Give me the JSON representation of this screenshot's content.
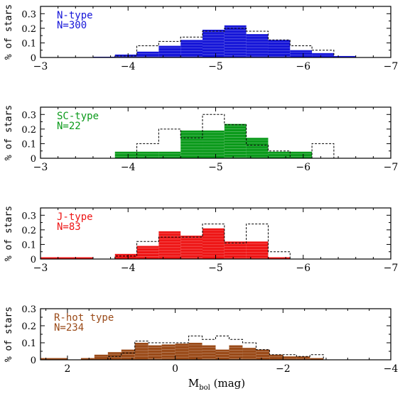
{
  "figure": {
    "xlabel_main": "M",
    "xlabel_sub": "bol",
    "xlabel_unit": " (mag)"
  },
  "chart_data": [
    {
      "type": "histogram",
      "panel": "N",
      "label": "N-type",
      "count_label": "N=300",
      "color": "#1515d8",
      "ylabel": "% of stars",
      "xlim": [
        -3,
        -7
      ],
      "ylim": [
        0,
        0.35
      ],
      "xticks": [
        "−3",
        "−4",
        "−5",
        "−6",
        "−7"
      ],
      "xtick_values": [
        -3,
        -4,
        -5,
        -6,
        -7
      ],
      "yticks": [
        "0",
        "0.1",
        "0.2",
        "0.3"
      ],
      "ytick_values": [
        0,
        0.1,
        0.2,
        0.3
      ],
      "bin_edges": [
        -3.6,
        -3.85,
        -4.1,
        -4.35,
        -4.6,
        -4.85,
        -5.1,
        -5.35,
        -5.6,
        -5.85,
        -6.1,
        -6.35,
        -6.6
      ],
      "filled": [
        0.005,
        0.02,
        0.04,
        0.08,
        0.12,
        0.19,
        0.22,
        0.16,
        0.12,
        0.05,
        0.03,
        0.01
      ],
      "dashed": [
        0.0,
        0.01,
        0.08,
        0.11,
        0.14,
        0.18,
        0.2,
        0.18,
        0.12,
        0.08,
        0.05,
        0.0
      ]
    },
    {
      "type": "histogram",
      "panel": "SC",
      "label": "SC-type",
      "count_label": "N=22",
      "color": "#0a9a1a",
      "ylabel": "% of stars",
      "xlim": [
        -3,
        -7
      ],
      "ylim": [
        0,
        0.35
      ],
      "xticks": [
        "−3",
        "−4",
        "−5",
        "−6",
        "−7"
      ],
      "xtick_values": [
        -3,
        -4,
        -5,
        -6,
        -7
      ],
      "yticks": [
        "0",
        "0.1",
        "0.2",
        "0.3"
      ],
      "ytick_values": [
        0,
        0.1,
        0.2,
        0.3
      ],
      "bin_edges": [
        -3.85,
        -4.1,
        -4.35,
        -4.6,
        -4.85,
        -5.1,
        -5.35,
        -5.6,
        -5.85,
        -6.1,
        -6.35
      ],
      "filled": [
        0.045,
        0.045,
        0.045,
        0.19,
        0.19,
        0.235,
        0.14,
        0.045,
        0.045,
        0.0
      ],
      "dashed": [
        0.0,
        0.1,
        0.2,
        0.14,
        0.3,
        0.23,
        0.09,
        0.05,
        0.0,
        0.1
      ]
    },
    {
      "type": "histogram",
      "panel": "J",
      "label": "J-type",
      "count_label": "N=83",
      "color": "#ee1515",
      "ylabel": "% of stars",
      "xlim": [
        -3,
        -7
      ],
      "ylim": [
        0,
        0.35
      ],
      "xticks": [
        "−3",
        "−4",
        "−5",
        "−6",
        "−7"
      ],
      "xtick_values": [
        -3,
        -4,
        -5,
        -6,
        -7
      ],
      "yticks": [
        "0",
        "0.1",
        "0.2",
        "0.3"
      ],
      "ytick_values": [
        0,
        0.1,
        0.2,
        0.3
      ],
      "bin_edges": [
        -3.0,
        -3.6,
        -3.85,
        -4.1,
        -4.35,
        -4.6,
        -4.85,
        -5.1,
        -5.35,
        -5.6,
        -5.85
      ],
      "filled": [
        0.012,
        0.0,
        0.035,
        0.09,
        0.19,
        0.16,
        0.21,
        0.12,
        0.12,
        0.012
      ],
      "dashed": [
        0.0,
        0.0,
        0.02,
        0.12,
        0.15,
        0.15,
        0.24,
        0.11,
        0.24,
        0.05
      ]
    },
    {
      "type": "histogram",
      "panel": "R-hot",
      "label": "R-hot type",
      "count_label": "N=234",
      "color": "#9a4a18",
      "ylabel": "% of stars",
      "xlim": [
        2.5,
        -4
      ],
      "ylim": [
        0,
        0.3
      ],
      "xticks": [
        "2",
        "0",
        "−2",
        "−4"
      ],
      "xtick_values": [
        2,
        0,
        -2,
        -4
      ],
      "yticks": [
        "0",
        "0.1",
        "0.2",
        "0.3"
      ],
      "ytick_values": [
        0,
        0.1,
        0.2,
        0.3
      ],
      "bin_edges": [
        2.5,
        2.0,
        1.75,
        1.5,
        1.25,
        1.0,
        0.75,
        0.5,
        0.25,
        0.0,
        -0.25,
        -0.5,
        -0.75,
        -1.0,
        -1.25,
        -1.5,
        -1.75,
        -2.0,
        -2.25,
        -2.5,
        -2.75,
        -3.0
      ],
      "filled": [
        0.01,
        0.0,
        0.01,
        0.03,
        0.045,
        0.06,
        0.1,
        0.085,
        0.09,
        0.095,
        0.1,
        0.085,
        0.06,
        0.085,
        0.07,
        0.06,
        0.03,
        0.02,
        0.02,
        0.01,
        0.0
      ],
      "dashed": [
        0.0,
        0.0,
        0.0,
        0.0,
        0.02,
        0.04,
        0.11,
        0.1,
        0.1,
        0.1,
        0.14,
        0.12,
        0.14,
        0.12,
        0.1,
        0.06,
        0.03,
        0.03,
        0.02,
        0.03,
        0.0
      ]
    }
  ]
}
